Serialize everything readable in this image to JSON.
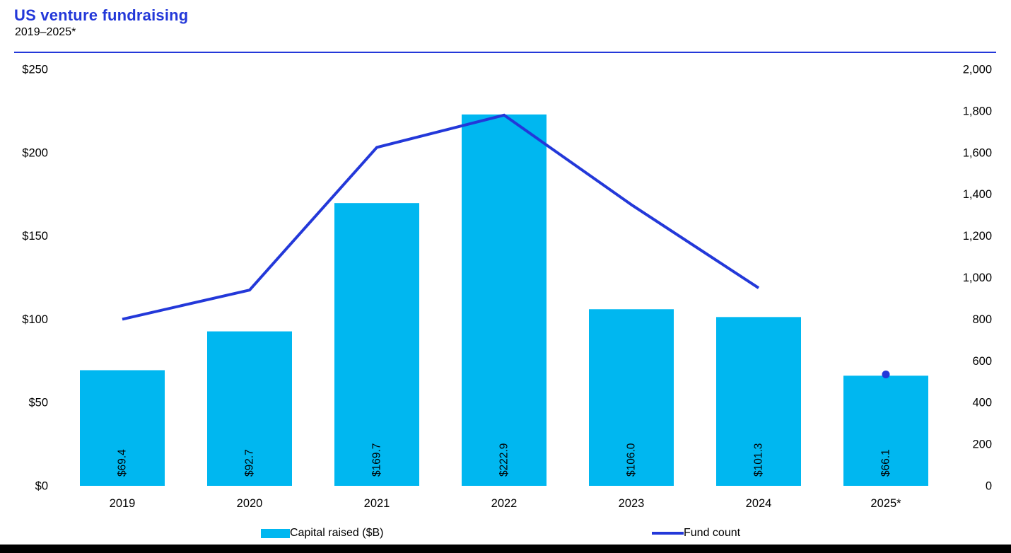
{
  "header": {
    "title": "US venture fundraising",
    "subtitle": "2019–2025*"
  },
  "colors": {
    "accent_blue": "#2338D9",
    "bar_cyan": "#00B7F0",
    "text_black": "#000000",
    "footer_bar": "#000000"
  },
  "chart_data": {
    "type": "bar",
    "subtype": "dual-axis combo: bars (left axis) + line (right axis)",
    "title": "US venture fundraising",
    "subtitle": "2019–2025*",
    "categories": [
      "2019",
      "2020",
      "2021",
      "2022",
      "2023",
      "2024",
      "2025*"
    ],
    "series": [
      {
        "name": "Capital raised ($B)",
        "type": "bar",
        "axis": "left",
        "color": "#00B7F0",
        "values": [
          69.4,
          92.7,
          169.7,
          222.9,
          106.0,
          101.3,
          66.1
        ],
        "labels": [
          "$69.4",
          "$92.7",
          "$169.7",
          "$222.9",
          "$106.0",
          "$101.3",
          "$66.1"
        ]
      },
      {
        "name": "Fund count",
        "type": "line",
        "axis": "right",
        "color": "#2338D9",
        "values": [
          800,
          940,
          1625,
          1780,
          1350,
          950,
          535
        ],
        "values_estimated_from_gridlines": true,
        "isolated_point_indices": [
          6
        ]
      }
    ],
    "left_axis": {
      "min": 0,
      "max": 250,
      "ticks": [
        "$0",
        "$50",
        "$100",
        "$150",
        "$200",
        "$250"
      ]
    },
    "right_axis": {
      "min": 0,
      "max": 2000,
      "ticks": [
        "0",
        "200",
        "400",
        "600",
        "800",
        "1,000",
        "1,200",
        "1,400",
        "1,600",
        "1,800",
        "2,000"
      ]
    },
    "grid": false,
    "legend_position": "bottom"
  },
  "legend": {
    "items": [
      {
        "label": "Capital raised ($B)",
        "swatch": "rect"
      },
      {
        "label": "Fund count",
        "swatch": "line"
      }
    ]
  }
}
